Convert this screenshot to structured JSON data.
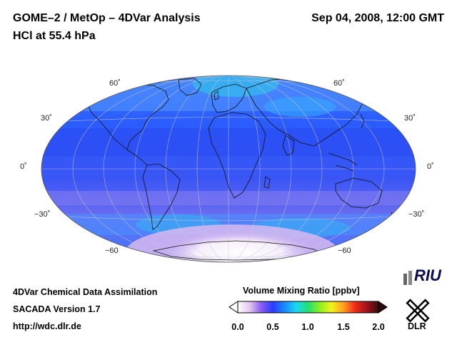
{
  "header": {
    "title": "GOME–2 / MetOp – 4DVar Analysis",
    "subtitle": "HCl at 55.4 hPa",
    "datetime": "Sep 04, 2008, 12:00 GMT"
  },
  "footer": {
    "line1": "4DVar Chemical Data Assimilation",
    "line2": "SACADA Version 1.7",
    "line3": "http://wdc.dlr.de"
  },
  "colorbar": {
    "title": "Volume Mixing Ratio [ppbv]",
    "ticks": [
      "0.0",
      "0.5",
      "1.0",
      "1.5",
      "2.0"
    ],
    "min": 0.0,
    "max": 2.0,
    "colors": [
      "#ffffff",
      "#e6c8f0",
      "#8a5cf0",
      "#2a3cff",
      "#1a8cff",
      "#19d8f0",
      "#22e070",
      "#8ef020",
      "#f2f21a",
      "#ffa020",
      "#f02a1a",
      "#a0141a",
      "#3a0d0d"
    ]
  },
  "map": {
    "projection": "Hammer-Aitoff",
    "lat_labels_left": [
      "60˚",
      "30˚",
      "0˚",
      "−30˚",
      "−60"
    ],
    "lat_labels_right": [
      "60˚",
      "30˚",
      "0˚",
      "−30˚",
      "−60"
    ],
    "ocean_color": "#3a66ff"
  },
  "logos": {
    "riu": "RIU",
    "dlr": "DLR"
  }
}
